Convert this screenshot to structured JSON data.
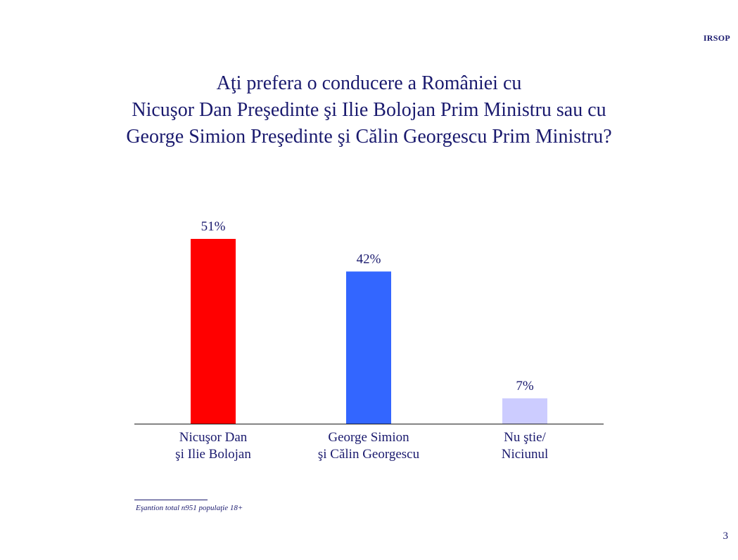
{
  "brand": "IRSOP",
  "page_number": "3",
  "footnote": "Eşantion total n951 populaţie 18+",
  "chart_data": {
    "type": "bar",
    "title_lines": [
      "Aţi prefera o conducere a României cu",
      "Nicuşor Dan Preşedinte şi Ilie Bolojan Prim Ministru sau cu",
      "George Simion Preşedinte şi Călin Georgescu Prim Ministru?"
    ],
    "categories": [
      [
        "Nicuşor Dan",
        "şi Ilie Bolojan"
      ],
      [
        "George Simion",
        "şi Călin Georgescu"
      ],
      [
        "Nu ştie/",
        "Niciunul"
      ]
    ],
    "values": [
      51,
      42,
      7
    ],
    "value_labels": [
      "51%",
      "42%",
      "7%"
    ],
    "colors": [
      "#ff0000",
      "#3366ff",
      "#ccccff"
    ],
    "ylim": [
      0,
      60
    ],
    "xlabel": "",
    "ylabel": "",
    "grid": false
  }
}
